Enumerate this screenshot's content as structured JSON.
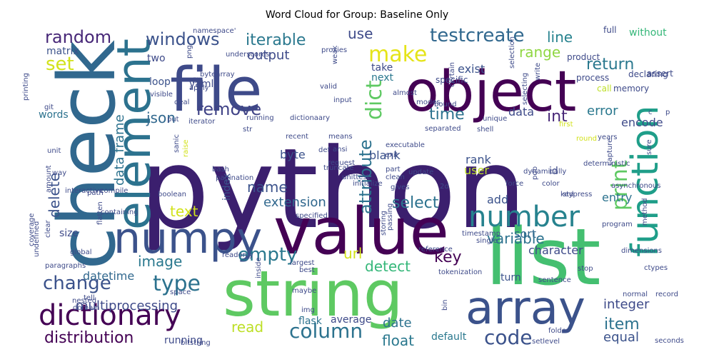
{
  "title": "Word Cloud for Group: Baseline Only",
  "chart_data": {
    "type": "word_cloud",
    "title": "Word Cloud for Group: Baseline Only",
    "words": [
      {
        "text": "python",
        "color": "#3b1f6e"
      },
      {
        "text": "string",
        "color": "#5ec962"
      },
      {
        "text": "list",
        "color": "#44bf70"
      },
      {
        "text": "value",
        "color": "#440154"
      },
      {
        "text": "object",
        "color": "#440154"
      },
      {
        "text": "file",
        "color": "#3e4a89"
      },
      {
        "text": "check",
        "color": "#31688e"
      },
      {
        "text": "array",
        "color": "#3b528b"
      },
      {
        "text": "numpy",
        "color": "#3b528b"
      },
      {
        "text": "element",
        "color": "#2c728e"
      },
      {
        "text": "function",
        "color": "#1f9e89"
      },
      {
        "text": "number",
        "color": "#26828e"
      },
      {
        "text": "dictionary",
        "color": "#440154"
      },
      {
        "text": "make",
        "color": "#e5e419"
      },
      {
        "text": "empty",
        "color": "#2a788e"
      },
      {
        "text": "change",
        "color": "#3b528b"
      },
      {
        "text": "type",
        "color": "#2c728e"
      },
      {
        "text": "column",
        "color": "#2c728e"
      },
      {
        "text": "code",
        "color": "#3b528b"
      },
      {
        "text": "testcreate",
        "color": "#31688e"
      },
      {
        "text": "windows",
        "color": "#3b528b"
      },
      {
        "text": "random",
        "color": "#482878"
      },
      {
        "text": "distribution",
        "color": "#440154"
      },
      {
        "text": "remove",
        "color": "#414487"
      },
      {
        "text": "iterable",
        "color": "#2a788e"
      },
      {
        "text": "attribute",
        "color": "#2c728e"
      },
      {
        "text": "dict",
        "color": "#5ec962"
      },
      {
        "text": "set",
        "color": "#d2e21b"
      },
      {
        "text": "return",
        "color": "#2a788e"
      },
      {
        "text": "range",
        "color": "#90d743"
      },
      {
        "text": "line",
        "color": "#26828e"
      },
      {
        "text": "use",
        "color": "#3e4a89"
      },
      {
        "text": "output",
        "color": "#3e4a89"
      },
      {
        "text": "print",
        "color": "#5ec962"
      },
      {
        "text": "int",
        "color": "#482878"
      },
      {
        "text": "time",
        "color": "#2c728e"
      },
      {
        "text": "json",
        "color": "#31688e"
      },
      {
        "text": "error",
        "color": "#2a788e"
      },
      {
        "text": "key",
        "color": "#440154"
      },
      {
        "text": "select",
        "color": "#2c728e"
      },
      {
        "text": "variable",
        "color": "#2c728e"
      },
      {
        "text": "name",
        "color": "#3b528b"
      },
      {
        "text": "image",
        "color": "#2a788e"
      },
      {
        "text": "text",
        "color": "#d2e21b"
      },
      {
        "text": "extension",
        "color": "#31688e"
      },
      {
        "text": "url",
        "color": "#d2e21b"
      },
      {
        "text": "detect",
        "color": "#35b779"
      },
      {
        "text": "read",
        "color": "#bddf26"
      },
      {
        "text": "float",
        "color": "#2a788e"
      },
      {
        "text": "item",
        "color": "#2c728e"
      },
      {
        "text": "equal",
        "color": "#3b528b"
      },
      {
        "text": "date",
        "color": "#2c728e"
      },
      {
        "text": "multiprocessing",
        "color": "#3e4a89"
      },
      {
        "text": "integer",
        "color": "#3e4a89"
      },
      {
        "text": "datetime",
        "color": "#31688e"
      },
      {
        "text": "delete",
        "color": "#3b528b"
      },
      {
        "text": "data frame",
        "color": "#2c728e"
      },
      {
        "text": "sort",
        "color": "#31688e"
      },
      {
        "text": "character",
        "color": "#3e4a89"
      },
      {
        "text": "rank",
        "color": "#3b528b"
      },
      {
        "text": "user",
        "color": "#bddf26"
      },
      {
        "text": "add",
        "color": "#3b528b"
      },
      {
        "text": "encode",
        "color": "#3e4a89"
      },
      {
        "text": "entry",
        "color": "#2c728e"
      },
      {
        "text": "exist",
        "color": "#3b528b"
      },
      {
        "text": "byte",
        "color": "#3b528b"
      },
      {
        "text": "blank",
        "color": "#3b528b"
      },
      {
        "text": "data",
        "color": "#3e4a89"
      },
      {
        "text": "matrix",
        "color": "#3b528b"
      },
      {
        "text": "two",
        "color": "#3e4a89"
      },
      {
        "text": "loop",
        "color": "#3b528b"
      },
      {
        "text": "yaml",
        "color": "#3e4a89"
      },
      {
        "text": "words",
        "color": "#2c728e"
      },
      {
        "text": "next",
        "color": "#2a788e"
      },
      {
        "text": "take",
        "color": "#3e4a89"
      },
      {
        "text": "index",
        "color": "#3b528b"
      },
      {
        "text": "id",
        "color": "#3e4a89"
      },
      {
        "text": "size",
        "color": "#3e4a89"
      },
      {
        "text": "average",
        "color": "#3e4a89"
      },
      {
        "text": "flask",
        "color": "#2c728e"
      },
      {
        "text": "default",
        "color": "#2a788e"
      },
      {
        "text": "turn",
        "color": "#3b528b"
      },
      {
        "text": "running",
        "color": "#3e4a89"
      },
      {
        "text": "without",
        "color": "#35b779"
      },
      {
        "text": "full",
        "color": "#3e4a89"
      },
      {
        "text": "assert",
        "color": "#3e4a89"
      },
      {
        "text": "process",
        "color": "#3e4a89"
      },
      {
        "text": "product",
        "color": "#3e4a89"
      },
      {
        "text": "declaring",
        "color": "#3e4a89"
      },
      {
        "text": "specific",
        "color": "#3e4a89"
      },
      {
        "text": "memory",
        "color": "#3e4a89"
      },
      {
        "text": "call",
        "color": "#bddf26"
      },
      {
        "text": "namespace'",
        "color": "#3e4a89"
      },
      {
        "text": "printing",
        "color": "#3e4a89"
      },
      {
        "text": "png",
        "color": "#3e4a89"
      },
      {
        "text": "underscores",
        "color": "#3e4a89"
      },
      {
        "text": "proxies",
        "color": "#3e4a89"
      },
      {
        "text": "weak",
        "color": "#3e4a89"
      },
      {
        "text": "bytearray",
        "color": "#3e4a89"
      },
      {
        "text": "flip",
        "color": "#3e4a89"
      },
      {
        "text": "apply",
        "color": "#3e4a89"
      },
      {
        "text": "visible",
        "color": "#3e4a89"
      },
      {
        "text": "valid",
        "color": "#3e4a89"
      },
      {
        "text": "git",
        "color": "#3e4a89"
      },
      {
        "text": "deal",
        "color": "#3e4a89"
      },
      {
        "text": "almost",
        "color": "#3e4a89"
      },
      {
        "text": "modes",
        "color": "#3e4a89"
      },
      {
        "text": "input",
        "color": "#3e4a89"
      },
      {
        "text": "bound",
        "color": "#3e4a89"
      },
      {
        "text": "certain",
        "color": "#3e4a89"
      },
      {
        "text": "selecting",
        "color": "#3e4a89"
      },
      {
        "text": "selection",
        "color": "#3e4a89"
      },
      {
        "text": "write",
        "color": "#3e4a89"
      },
      {
        "text": "running",
        "color": "#3e4a89"
      },
      {
        "text": "dictionaary",
        "color": "#3e4a89"
      },
      {
        "text": "put",
        "color": "#3e4a89"
      },
      {
        "text": "iterator",
        "color": "#3e4a89"
      },
      {
        "text": "str",
        "color": "#3e4a89"
      },
      {
        "text": "unique",
        "color": "#3e4a89"
      },
      {
        "text": "shell",
        "color": "#3e4a89"
      },
      {
        "text": "first",
        "color": "#d2e21b"
      },
      {
        "text": "separated",
        "color": "#3e4a89"
      },
      {
        "text": "means",
        "color": "#3e4a89"
      },
      {
        "text": "def",
        "color": "#3e4a89"
      },
      {
        "text": "recent",
        "color": "#3e4a89"
      },
      {
        "text": "ansi",
        "color": "#3e4a89"
      },
      {
        "text": "round",
        "color": "#d2e21b"
      },
      {
        "text": "years",
        "color": "#3e4a89"
      },
      {
        "text": "sure",
        "color": "#3e4a89"
      },
      {
        "text": "capture",
        "color": "#3e4a89"
      },
      {
        "text": "deterministic",
        "color": "#3e4a89"
      },
      {
        "text": "executable",
        "color": "#3e4a89"
      },
      {
        "text": "exit",
        "color": "#3e4a89"
      },
      {
        "text": "unit",
        "color": "#3e4a89"
      },
      {
        "text": "sanic",
        "color": "#3e4a89"
      },
      {
        "text": "raise",
        "color": "#d2e21b"
      },
      {
        "text": "truncate",
        "color": "#3e4a89"
      },
      {
        "text": "request",
        "color": "#3e4a89"
      },
      {
        "text": "part",
        "color": "#3e4a89"
      },
      {
        "text": "clean",
        "color": "#3e4a89"
      },
      {
        "text": "update",
        "color": "#3e4a89"
      },
      {
        "text": "pdb",
        "color": "#3e4a89"
      },
      {
        "text": "dynamically",
        "color": "#3e4a89"
      },
      {
        "text": "force",
        "color": "#3e4a89"
      },
      {
        "text": "way",
        "color": "#3e4a89"
      },
      {
        "text": "bash",
        "color": "#3e4a89"
      },
      {
        "text": "pagination",
        "color": "#3e4a89"
      },
      {
        "text": "unittest",
        "color": "#3e4a89"
      },
      {
        "text": "gives",
        "color": "#3e4a89"
      },
      {
        "text": "color",
        "color": "#3e4a89"
      },
      {
        "text": "amount",
        "color": "#3e4a89"
      },
      {
        "text": "interactive",
        "color": "#3e4a89"
      },
      {
        "text": "compile",
        "color": "#3e4a89"
      },
      {
        "text": "boolean",
        "color": "#3e4a89"
      },
      {
        "text": "initialize",
        "color": "#3e4a89"
      },
      {
        "text": "2d",
        "color": "#3e4a89"
      },
      {
        "text": "std",
        "color": "#3e4a89"
      },
      {
        "text": "keypress",
        "color": "#3e4a89"
      },
      {
        "text": "containing",
        "color": "#3e4a89"
      },
      {
        "text": "flatten",
        "color": "#3e4a89"
      },
      {
        "text": "asynchronous",
        "color": "#3e4a89"
      },
      {
        "text": "coverage",
        "color": "#3e4a89"
      },
      {
        "text": "undefined",
        "color": "#3e4a89"
      },
      {
        "text": "clear",
        "color": "#3e4a89"
      },
      {
        "text": "specified",
        "color": "#3e4a89"
      },
      {
        "text": "storing",
        "color": "#3e4a89"
      },
      {
        "text": "passing",
        "color": "#3e4a89"
      },
      {
        "text": "program",
        "color": "#3e4a89"
      },
      {
        "text": "timestamp",
        "color": "#3e4a89"
      },
      {
        "text": "method",
        "color": "#3e4a89"
      },
      {
        "text": "single",
        "color": "#3e4a89"
      },
      {
        "text": "dimensions",
        "color": "#3e4a89"
      },
      {
        "text": "ctypes",
        "color": "#3e4a89"
      },
      {
        "text": "reference",
        "color": "#3e4a89"
      },
      {
        "text": "global",
        "color": "#3e4a89"
      },
      {
        "text": "readonly",
        "color": "#3e4a89"
      },
      {
        "text": "largest",
        "color": "#3e4a89"
      },
      {
        "text": "paragraphs",
        "color": "#3e4a89"
      },
      {
        "text": "best",
        "color": "#3e4a89"
      },
      {
        "text": "inside",
        "color": "#3e4a89"
      },
      {
        "text": "tokenization",
        "color": "#3e4a89"
      },
      {
        "text": "stop",
        "color": "#3e4a89"
      },
      {
        "text": "sentence",
        "color": "#3e4a89"
      },
      {
        "text": "tell",
        "color": "#3e4a89"
      },
      {
        "text": "space",
        "color": "#3e4a89"
      },
      {
        "text": "maybe",
        "color": "#3e4a89"
      },
      {
        "text": "normal",
        "color": "#3e4a89"
      },
      {
        "text": "record",
        "color": "#3e4a89"
      },
      {
        "text": "domain",
        "color": "#3e4a89"
      },
      {
        "text": "img",
        "color": "#3e4a89"
      },
      {
        "text": "bin",
        "color": "#3e4a89"
      },
      {
        "text": "folder",
        "color": "#3e4a89"
      },
      {
        "text": "bitstring",
        "color": "#3e4a89"
      },
      {
        "text": "setlevel",
        "color": "#3e4a89"
      },
      {
        "text": "seconds",
        "color": "#3e4a89"
      },
      {
        "text": "nested",
        "color": "#3e4a89"
      },
      {
        "text": "path",
        "color": "#3e4a89"
      },
      {
        "text": "c",
        "color": "#3e4a89"
      },
      {
        "text": "p",
        "color": "#3e4a89"
      }
    ]
  }
}
